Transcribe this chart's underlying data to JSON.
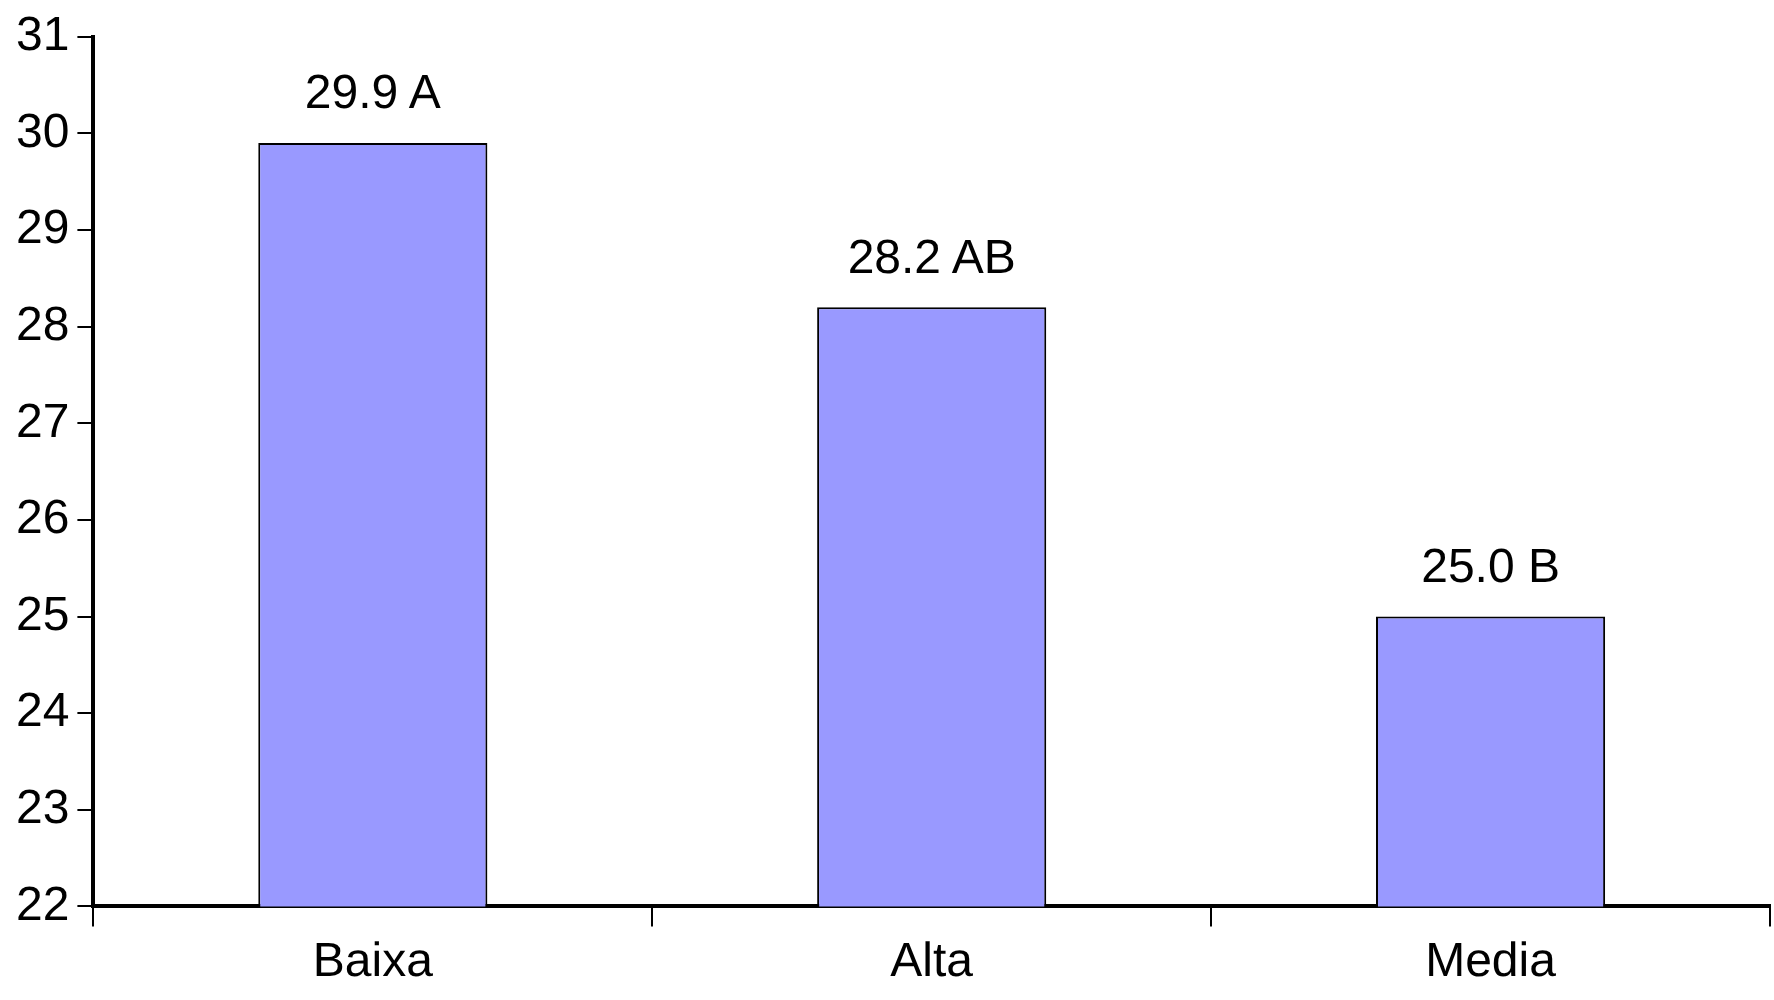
{
  "chart_data": {
    "type": "bar",
    "categories": [
      "Baixa",
      "Alta",
      "Media"
    ],
    "values": [
      29.9,
      28.2,
      25.0
    ],
    "color": "#9999ff",
    "value_labels": [
      "29.9 A",
      "28.2 AB",
      "25.0 B"
    ],
    "ylim": [
      22,
      31
    ],
    "yticks": [
      22,
      23,
      24,
      25,
      26,
      27,
      28,
      29,
      30,
      31
    ],
    "grid": false,
    "legend": false
  }
}
